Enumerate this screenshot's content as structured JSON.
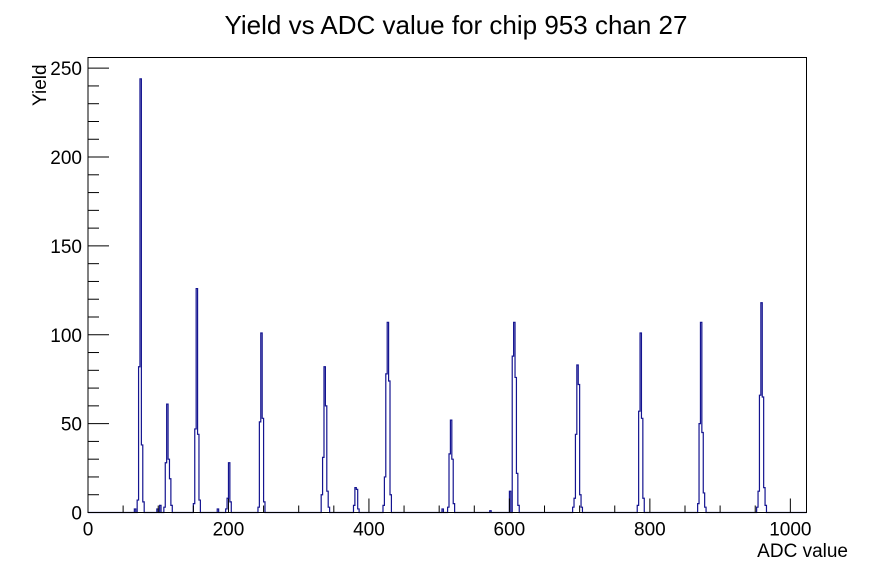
{
  "title": "Yield vs ADC value for chip 953 chan 27",
  "chart_data": {
    "type": "bar",
    "title": "Yield vs ADC value for chip 953 chan 27",
    "xlabel": "ADC value",
    "ylabel": "Yield",
    "xlim": [
      0,
      1023
    ],
    "ylim": [
      0,
      256
    ],
    "x_major_ticks": [
      0,
      200,
      400,
      600,
      800,
      1000
    ],
    "x_minor_step": 50,
    "y_major_ticks": [
      0,
      50,
      100,
      150,
      200,
      250
    ],
    "y_minor_step": 10,
    "grid": false,
    "legend": "none",
    "line_color": "#141490",
    "axis_color": "#000000",
    "background_color": "#ffffff",
    "bin_width": 2,
    "bins": [
      [
        67,
        2
      ],
      [
        71,
        7
      ],
      [
        73,
        82
      ],
      [
        75,
        244
      ],
      [
        77,
        38
      ],
      [
        79,
        6
      ],
      [
        99,
        2
      ],
      [
        103,
        4
      ],
      [
        109,
        3
      ],
      [
        111,
        28
      ],
      [
        113,
        61
      ],
      [
        115,
        30
      ],
      [
        117,
        19
      ],
      [
        119,
        4
      ],
      [
        151,
        5
      ],
      [
        153,
        47
      ],
      [
        155,
        126
      ],
      [
        157,
        44
      ],
      [
        159,
        7
      ],
      [
        185,
        2
      ],
      [
        197,
        2
      ],
      [
        199,
        8
      ],
      [
        201,
        28
      ],
      [
        203,
        6
      ],
      [
        243,
        3
      ],
      [
        245,
        51
      ],
      [
        247,
        101
      ],
      [
        249,
        53
      ],
      [
        251,
        6
      ],
      [
        333,
        10
      ],
      [
        335,
        31
      ],
      [
        337,
        82
      ],
      [
        339,
        60
      ],
      [
        341,
        12
      ],
      [
        343,
        3
      ],
      [
        379,
        4
      ],
      [
        381,
        14
      ],
      [
        383,
        13
      ],
      [
        385,
        2
      ],
      [
        421,
        4
      ],
      [
        423,
        20
      ],
      [
        425,
        78
      ],
      [
        427,
        107
      ],
      [
        429,
        74
      ],
      [
        431,
        10
      ],
      [
        505,
        2
      ],
      [
        513,
        3
      ],
      [
        515,
        33
      ],
      [
        517,
        52
      ],
      [
        519,
        30
      ],
      [
        521,
        5
      ],
      [
        573,
        1
      ],
      [
        601,
        12
      ],
      [
        605,
        88
      ],
      [
        607,
        107
      ],
      [
        609,
        76
      ],
      [
        611,
        22
      ],
      [
        613,
        4
      ],
      [
        691,
        3
      ],
      [
        693,
        8
      ],
      [
        695,
        44
      ],
      [
        697,
        83
      ],
      [
        699,
        72
      ],
      [
        701,
        10
      ],
      [
        703,
        3
      ],
      [
        783,
        4
      ],
      [
        785,
        57
      ],
      [
        787,
        101
      ],
      [
        789,
        53
      ],
      [
        791,
        8
      ],
      [
        869,
        5
      ],
      [
        871,
        50
      ],
      [
        873,
        107
      ],
      [
        875,
        45
      ],
      [
        877,
        11
      ],
      [
        879,
        3
      ],
      [
        953,
        3
      ],
      [
        955,
        12
      ],
      [
        957,
        66
      ],
      [
        959,
        118
      ],
      [
        961,
        65
      ],
      [
        963,
        14
      ],
      [
        965,
        4
      ]
    ],
    "peaks_summary": [
      {
        "adc": 75,
        "yield": 244
      },
      {
        "adc": 113,
        "yield": 61
      },
      {
        "adc": 155,
        "yield": 126
      },
      {
        "adc": 201,
        "yield": 28
      },
      {
        "adc": 247,
        "yield": 101
      },
      {
        "adc": 337,
        "yield": 82
      },
      {
        "adc": 381,
        "yield": 14
      },
      {
        "adc": 427,
        "yield": 107
      },
      {
        "adc": 517,
        "yield": 52
      },
      {
        "adc": 607,
        "yield": 107
      },
      {
        "adc": 697,
        "yield": 83
      },
      {
        "adc": 787,
        "yield": 101
      },
      {
        "adc": 873,
        "yield": 107
      },
      {
        "adc": 959,
        "yield": 118
      }
    ]
  }
}
